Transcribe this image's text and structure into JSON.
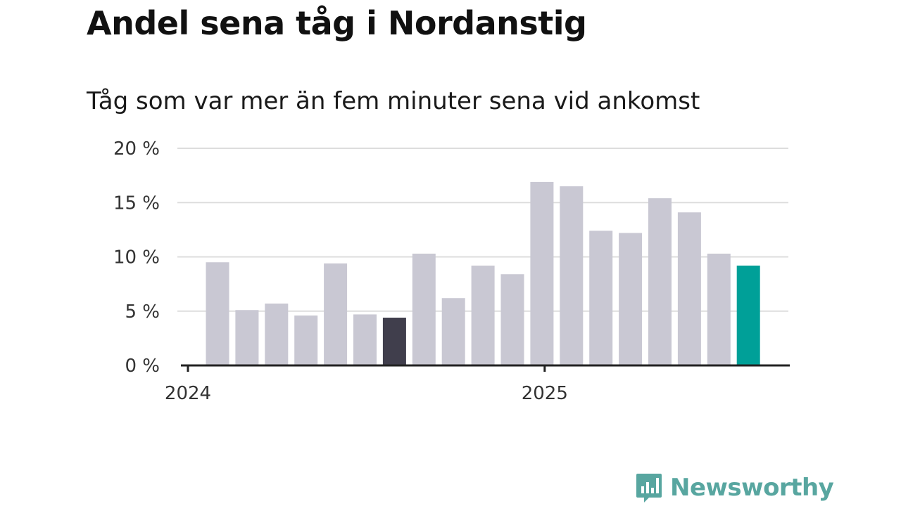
{
  "title": "Andel sena tåg i Nordanstig",
  "subtitle": "Tåg som var mer än fem minuter sena vid ankomst",
  "logo": {
    "text": "Newsworthy",
    "icon": "newsworthy-logo-icon",
    "color": "#58a6a0"
  },
  "colors": {
    "bar": "#c9c8d3",
    "highlight_dark": "#403e4c",
    "highlight_current": "#00a098",
    "grid": "#dddddd",
    "axis": "#222222"
  },
  "chart_data": {
    "type": "bar",
    "title": "Andel sena tåg i Nordanstig",
    "subtitle": "Tåg som var mer än fem minuter sena vid ankomst",
    "xlabel": "",
    "ylabel": "",
    "ylim": [
      0,
      20
    ],
    "y_ticks": [
      "0 %",
      "5 %",
      "10 %",
      "15 %",
      "20 %"
    ],
    "y_tick_values": [
      0,
      5,
      10,
      15,
      20
    ],
    "x_tick_labels": [
      {
        "label": "2024",
        "index": 0
      },
      {
        "label": "2025",
        "index": 12
      }
    ],
    "values": [
      9.5,
      5.1,
      5.7,
      4.6,
      9.4,
      4.7,
      4.4,
      10.3,
      6.2,
      9.2,
      8.4,
      16.9,
      16.5,
      12.4,
      12.2,
      15.4,
      14.1,
      10.3,
      9.2
    ],
    "highlight": [
      {
        "index": 6,
        "color": "#403e4c"
      },
      {
        "index": 18,
        "color": "#00a098"
      }
    ],
    "grid": true
  }
}
